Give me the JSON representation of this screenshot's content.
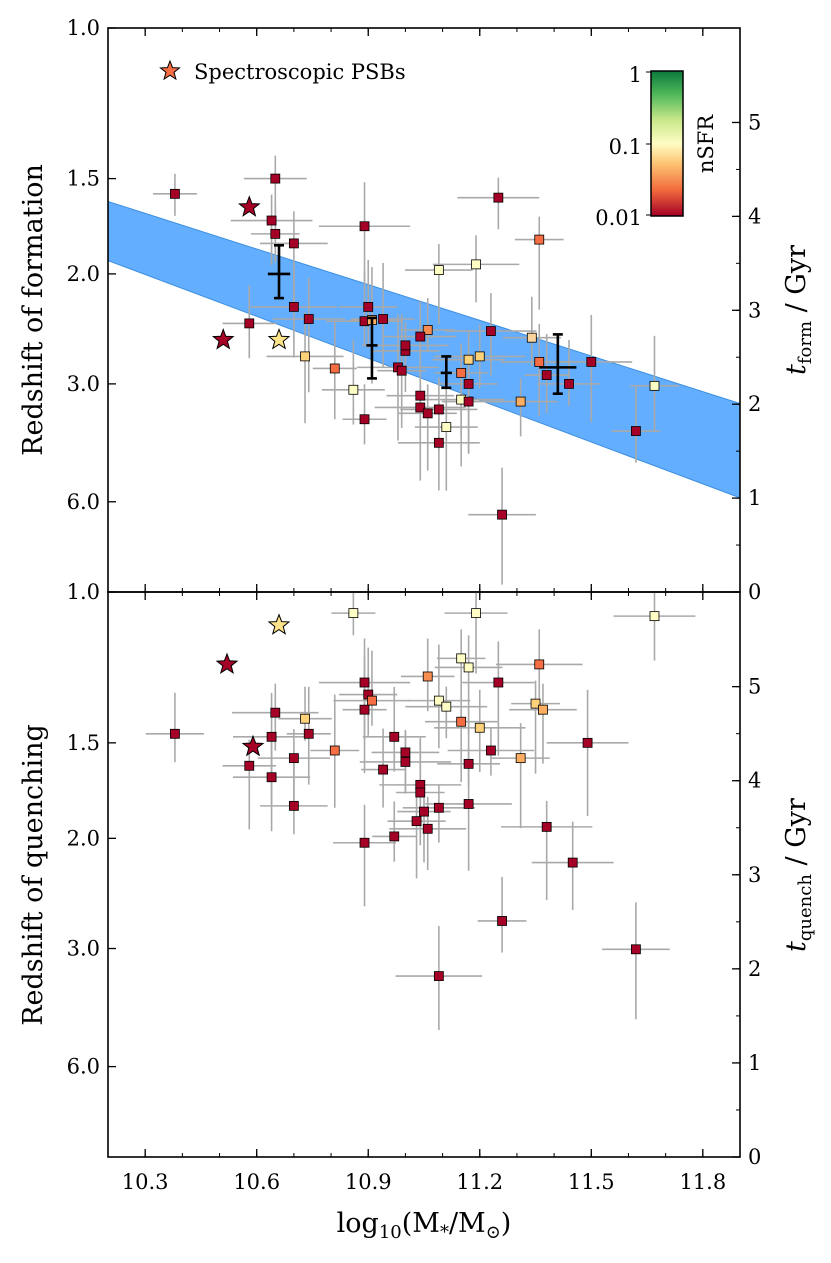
{
  "chart_data": [
    {
      "type": "scatter",
      "panel": "top",
      "xlim": [
        10.2,
        11.9
      ],
      "y_ticks_left": [
        "1.0",
        "1.5",
        "2.0",
        "3.0",
        "6.0"
      ],
      "y_ticks_left_z": [
        1.0,
        1.5,
        2.0,
        3.0,
        6.0
      ],
      "ylabel": "Redshift of formation",
      "y2label_main": "t",
      "y2label_sub": "form",
      "y2label_suffix": " / Gyr",
      "y2_ticks": [
        "0",
        "1",
        "2",
        "3",
        "4",
        "5"
      ],
      "legend": {
        "label": "Spectroscopic PSBs",
        "marker": "star",
        "placement": "top-left"
      },
      "colorbar": {
        "label": "nSFR",
        "ticks": [
          "1",
          "0.1",
          "0.01"
        ],
        "colors": [
          "#0b7a3b",
          "#4fb85a",
          "#c9e88a",
          "#fefdc4",
          "#fdc373",
          "#f26b3c",
          "#a50026"
        ]
      },
      "band": {
        "color": "#63aeff",
        "upper": [
          [
            10.2,
            1.62
          ],
          [
            11.9,
            3.5
          ]
        ],
        "lower": [
          [
            10.2,
            1.93
          ],
          [
            11.9,
            5.9
          ]
        ]
      },
      "stacked_points": [
        {
          "x": 10.66,
          "z": 2.0,
          "xerr": 0.03,
          "zlo": 1.85,
          "zhi": 2.22
        },
        {
          "x": 10.91,
          "z": 2.65,
          "xerr": 0.015,
          "zlo": 2.4,
          "zhi": 2.95
        },
        {
          "x": 11.11,
          "z": 2.9,
          "xerr": 0.015,
          "zlo": 2.75,
          "zhi": 3.1
        },
        {
          "x": 11.41,
          "z": 2.85,
          "xerr": 0.05,
          "zlo": 2.55,
          "zhi": 3.25
        }
      ],
      "psb_points": [
        {
          "x": 10.58,
          "z": 1.65,
          "color": "#a50026"
        },
        {
          "x": 10.51,
          "z": 2.6,
          "color": "#a50026"
        },
        {
          "x": 10.66,
          "z": 2.6,
          "color": "#fde38a"
        }
      ],
      "points": [
        {
          "x": 10.38,
          "z": 1.58,
          "color": "#a50026"
        },
        {
          "x": 10.65,
          "z": 1.5,
          "color": "#a50026"
        },
        {
          "x": 10.64,
          "z": 1.72,
          "color": "#a50026"
        },
        {
          "x": 10.65,
          "z": 1.79,
          "color": "#a50026"
        },
        {
          "x": 10.7,
          "z": 1.84,
          "color": "#a50026"
        },
        {
          "x": 10.7,
          "z": 2.3,
          "color": "#a50026"
        },
        {
          "x": 10.58,
          "z": 2.45,
          "color": "#a50026"
        },
        {
          "x": 10.74,
          "z": 2.41,
          "color": "#a50026"
        },
        {
          "x": 10.89,
          "z": 1.75,
          "color": "#a50026"
        },
        {
          "x": 10.9,
          "z": 2.3,
          "color": "#a50026"
        },
        {
          "x": 10.89,
          "z": 2.43,
          "color": "#a50026"
        },
        {
          "x": 10.91,
          "z": 2.42,
          "color": "#fdae61"
        },
        {
          "x": 10.94,
          "z": 2.41,
          "color": "#a50026"
        },
        {
          "x": 11.25,
          "z": 1.6,
          "color": "#a50026"
        },
        {
          "x": 11.36,
          "z": 1.82,
          "color": "#f46d43"
        },
        {
          "x": 11.09,
          "z": 1.98,
          "color": "#fefdc4"
        },
        {
          "x": 11.19,
          "z": 1.95,
          "color": "#fefdc4"
        },
        {
          "x": 11.06,
          "z": 2.51,
          "color": "#f88d52"
        },
        {
          "x": 11.04,
          "z": 2.57,
          "color": "#a50026"
        },
        {
          "x": 11.23,
          "z": 2.52,
          "color": "#a50026"
        },
        {
          "x": 11.34,
          "z": 2.58,
          "color": "#fdd49e"
        },
        {
          "x": 10.73,
          "z": 2.75,
          "color": "#fdd27a"
        },
        {
          "x": 10.81,
          "z": 2.86,
          "color": "#f46d43"
        },
        {
          "x": 10.86,
          "z": 3.15,
          "color": "#fefdc4"
        },
        {
          "x": 10.98,
          "z": 2.85,
          "color": "#a50026"
        },
        {
          "x": 10.99,
          "z": 2.88,
          "color": "#a50026"
        },
        {
          "x": 11.0,
          "z": 2.7,
          "color": "#a50026"
        },
        {
          "x": 11.0,
          "z": 2.65,
          "color": "#a50026"
        },
        {
          "x": 11.15,
          "z": 2.9,
          "color": "#f46d43"
        },
        {
          "x": 11.17,
          "z": 2.78,
          "color": "#fdd27a"
        },
        {
          "x": 11.2,
          "z": 2.75,
          "color": "#fdd27a"
        },
        {
          "x": 11.17,
          "z": 3.0,
          "color": "#a50026"
        },
        {
          "x": 11.36,
          "z": 2.8,
          "color": "#f46d43"
        },
        {
          "x": 11.38,
          "z": 2.92,
          "color": "#a50026"
        },
        {
          "x": 11.44,
          "z": 3.0,
          "color": "#a50026"
        },
        {
          "x": 11.5,
          "z": 2.8,
          "color": "#a50026"
        },
        {
          "x": 11.67,
          "z": 3.05,
          "color": "#fefdc4"
        },
        {
          "x": 11.04,
          "z": 3.3,
          "color": "#a50026"
        },
        {
          "x": 11.15,
          "z": 3.4,
          "color": "#fefdc4"
        },
        {
          "x": 11.17,
          "z": 3.45,
          "color": "#a50026"
        },
        {
          "x": 11.31,
          "z": 3.45,
          "color": "#fdae61"
        },
        {
          "x": 11.04,
          "z": 3.6,
          "color": "#a50026"
        },
        {
          "x": 11.06,
          "z": 3.75,
          "color": "#a50026"
        },
        {
          "x": 11.09,
          "z": 3.65,
          "color": "#a50026"
        },
        {
          "x": 10.89,
          "z": 3.9,
          "color": "#a50026"
        },
        {
          "x": 11.11,
          "z": 4.1,
          "color": "#fefdc4"
        },
        {
          "x": 11.09,
          "z": 4.5,
          "color": "#a50026"
        },
        {
          "x": 11.62,
          "z": 4.2,
          "color": "#a50026"
        },
        {
          "x": 11.26,
          "z": 6.5,
          "color": "#a50026"
        }
      ]
    },
    {
      "type": "scatter",
      "panel": "bottom",
      "xlim": [
        10.2,
        11.9
      ],
      "x_ticks": [
        "10.3",
        "10.6",
        "10.9",
        "11.2",
        "11.5",
        "11.8"
      ],
      "x_ticks_values": [
        10.3,
        10.6,
        10.9,
        11.2,
        11.5,
        11.8
      ],
      "xlabel_prefix": "log",
      "xlabel_sub": "10",
      "xlabel_rest": "(M",
      "xlabel_star": "*",
      "xlabel_tail": "/M",
      "xlabel_sun": "⊙",
      "xlabel_close": ")",
      "y_ticks_left": [
        "1.0",
        "1.5",
        "2.0",
        "3.0",
        "6.0"
      ],
      "y_ticks_left_z": [
        1.0,
        1.5,
        2.0,
        3.0,
        6.0
      ],
      "ylabel": "Redshift of quenching",
      "y2label_main": "t",
      "y2label_sub": "quench",
      "y2label_suffix": " / Gyr",
      "y2_ticks": [
        "0",
        "1",
        "2",
        "3",
        "4",
        "5"
      ],
      "psb_points": [
        {
          "x": 10.66,
          "z": 1.11,
          "color": "#fde38a"
        },
        {
          "x": 10.52,
          "z": 1.24,
          "color": "#a50026"
        },
        {
          "x": 10.59,
          "z": 1.52,
          "color": "#a50026"
        }
      ],
      "points": [
        {
          "x": 10.86,
          "z": 1.07,
          "color": "#fefdc4"
        },
        {
          "x": 11.19,
          "z": 1.07,
          "color": "#fefdc4"
        },
        {
          "x": 11.67,
          "z": 1.08,
          "color": "#fefdc4"
        },
        {
          "x": 11.15,
          "z": 1.22,
          "color": "#fefdc4"
        },
        {
          "x": 11.17,
          "z": 1.25,
          "color": "#fefdc4"
        },
        {
          "x": 11.36,
          "z": 1.24,
          "color": "#f46d43"
        },
        {
          "x": 11.06,
          "z": 1.28,
          "color": "#f88d52"
        },
        {
          "x": 11.25,
          "z": 1.3,
          "color": "#a50026"
        },
        {
          "x": 10.89,
          "z": 1.3,
          "color": "#a50026"
        },
        {
          "x": 10.9,
          "z": 1.34,
          "color": "#a50026"
        },
        {
          "x": 10.91,
          "z": 1.36,
          "color": "#f46d43"
        },
        {
          "x": 10.89,
          "z": 1.39,
          "color": "#a50026"
        },
        {
          "x": 11.09,
          "z": 1.36,
          "color": "#fefdc4"
        },
        {
          "x": 11.11,
          "z": 1.38,
          "color": "#fefdc4"
        },
        {
          "x": 11.35,
          "z": 1.37,
          "color": "#fdd27a"
        },
        {
          "x": 11.37,
          "z": 1.39,
          "color": "#fdae61"
        },
        {
          "x": 10.65,
          "z": 1.4,
          "color": "#a50026"
        },
        {
          "x": 10.73,
          "z": 1.42,
          "color": "#fdd27a"
        },
        {
          "x": 11.15,
          "z": 1.43,
          "color": "#f46d43"
        },
        {
          "x": 11.2,
          "z": 1.45,
          "color": "#fdd27a"
        },
        {
          "x": 10.38,
          "z": 1.47,
          "color": "#a50026"
        },
        {
          "x": 10.64,
          "z": 1.48,
          "color": "#a50026"
        },
        {
          "x": 10.74,
          "z": 1.47,
          "color": "#a50026"
        },
        {
          "x": 10.97,
          "z": 1.48,
          "color": "#a50026"
        },
        {
          "x": 11.49,
          "z": 1.5,
          "color": "#a50026"
        },
        {
          "x": 10.81,
          "z": 1.54,
          "color": "#f46d43"
        },
        {
          "x": 11.0,
          "z": 1.55,
          "color": "#a50026"
        },
        {
          "x": 11.23,
          "z": 1.54,
          "color": "#a50026"
        },
        {
          "x": 10.58,
          "z": 1.62,
          "color": "#a50026"
        },
        {
          "x": 10.7,
          "z": 1.58,
          "color": "#a50026"
        },
        {
          "x": 11.0,
          "z": 1.6,
          "color": "#a50026"
        },
        {
          "x": 11.31,
          "z": 1.58,
          "color": "#fdae61"
        },
        {
          "x": 10.64,
          "z": 1.68,
          "color": "#a50026"
        },
        {
          "x": 10.94,
          "z": 1.64,
          "color": "#a50026"
        },
        {
          "x": 11.17,
          "z": 1.61,
          "color": "#a50026"
        },
        {
          "x": 11.04,
          "z": 1.72,
          "color": "#a50026"
        },
        {
          "x": 11.04,
          "z": 1.76,
          "color": "#a50026"
        },
        {
          "x": 10.7,
          "z": 1.83,
          "color": "#a50026"
        },
        {
          "x": 11.17,
          "z": 1.82,
          "color": "#a50026"
        },
        {
          "x": 11.05,
          "z": 1.86,
          "color": "#a50026"
        },
        {
          "x": 11.09,
          "z": 1.84,
          "color": "#a50026"
        },
        {
          "x": 11.38,
          "z": 1.94,
          "color": "#a50026"
        },
        {
          "x": 11.03,
          "z": 1.91,
          "color": "#a50026"
        },
        {
          "x": 11.06,
          "z": 1.95,
          "color": "#a50026"
        },
        {
          "x": 10.97,
          "z": 1.99,
          "color": "#a50026"
        },
        {
          "x": 10.89,
          "z": 2.04,
          "color": "#a50026"
        },
        {
          "x": 11.45,
          "z": 2.22,
          "color": "#a50026"
        },
        {
          "x": 11.26,
          "z": 2.75,
          "color": "#a50026"
        },
        {
          "x": 11.62,
          "z": 3.02,
          "color": "#a50026"
        },
        {
          "x": 11.09,
          "z": 3.7,
          "color": "#a50026"
        }
      ]
    }
  ]
}
